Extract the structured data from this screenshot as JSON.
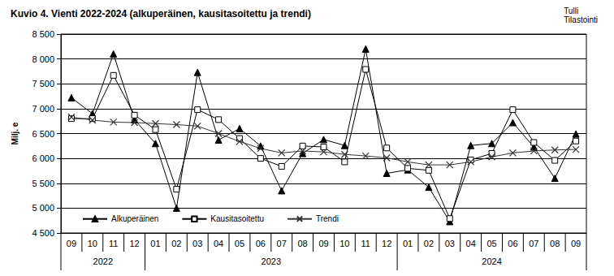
{
  "chart_data": {
    "type": "line",
    "title": "Kuvio 4. Vienti 2022-2024 (alkuperäinen, kausitasoitettu ja trendi)",
    "annotations": [
      "Tulli",
      "Tilastointi"
    ],
    "ylabel": "Milj. e",
    "categories": [
      "09",
      "10",
      "11",
      "12",
      "01",
      "02",
      "03",
      "04",
      "05",
      "06",
      "07",
      "08",
      "09",
      "10",
      "11",
      "12",
      "01",
      "02",
      "03",
      "04",
      "05",
      "06",
      "07",
      "08",
      "09"
    ],
    "category_years": [
      "2022",
      "2022",
      "2022",
      "2022",
      "2023",
      "2023",
      "2023",
      "2023",
      "2023",
      "2023",
      "2023",
      "2023",
      "2023",
      "2023",
      "2023",
      "2023",
      "2024",
      "2024",
      "2024",
      "2024",
      "2024",
      "2024",
      "2024",
      "2024",
      "2024"
    ],
    "series": [
      {
        "name": "Alkuperäinen",
        "color": "#000000",
        "marker": "triangle",
        "values": [
          7220,
          6900,
          8100,
          6780,
          6300,
          5000,
          7730,
          6370,
          6600,
          6250,
          5350,
          6100,
          6380,
          6260,
          8200,
          5700,
          5770,
          5420,
          4730,
          6260,
          6300,
          6720,
          6230,
          5600,
          6490
        ]
      },
      {
        "name": "Kausitasoitettu",
        "color": "#000000",
        "marker": "square",
        "values": [
          6800,
          6800,
          7670,
          6870,
          6580,
          5380,
          6980,
          6780,
          6400,
          6000,
          5840,
          6250,
          6230,
          5930,
          7790,
          6210,
          5800,
          5760,
          4790,
          5970,
          6100,
          6980,
          6320,
          5960,
          6350
        ]
      },
      {
        "name": "Trendi",
        "color": "#333333",
        "marker": "x",
        "values": [
          6830,
          6770,
          6730,
          6720,
          6700,
          6680,
          6650,
          6500,
          6340,
          6200,
          6110,
          6150,
          6130,
          6080,
          6050,
          6010,
          5930,
          5870,
          5870,
          5930,
          6030,
          6110,
          6150,
          6170,
          6180
        ]
      }
    ],
    "ylim": [
      4500,
      8500
    ],
    "yticks": [
      {
        "value": 4500,
        "label": "4 500"
      },
      {
        "value": 5000,
        "label": "5 000"
      },
      {
        "value": 5500,
        "label": "5 500"
      },
      {
        "value": 6000,
        "label": "6 000"
      },
      {
        "value": 6500,
        "label": "6 500"
      },
      {
        "value": 7000,
        "label": "7 000"
      },
      {
        "value": 7500,
        "label": "7 500"
      },
      {
        "value": 8000,
        "label": "8 000"
      },
      {
        "value": 8500,
        "label": "8 500"
      }
    ],
    "grid": true,
    "legend": "lower left"
  }
}
